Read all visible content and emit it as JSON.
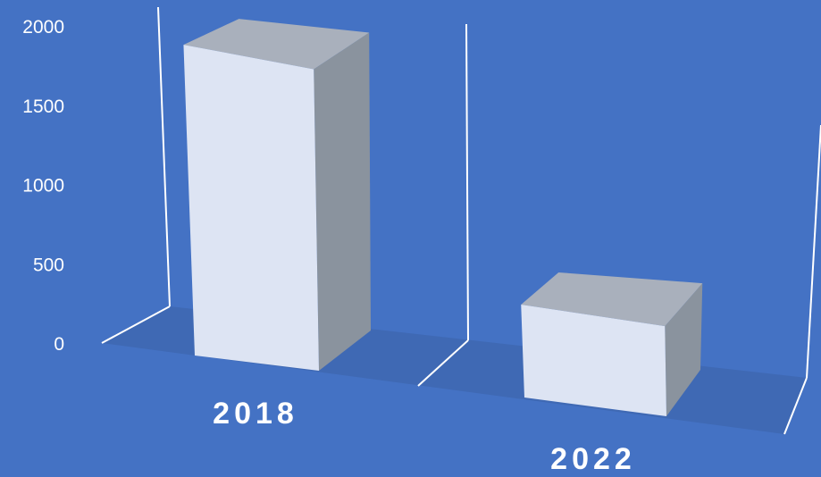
{
  "chart_data": {
    "type": "bar",
    "style": "3d-column",
    "categories": [
      "2018",
      "2022"
    ],
    "values": [
      1960,
      630
    ],
    "ylim": [
      0,
      2000
    ],
    "yticks": [
      0,
      500,
      1000,
      1500,
      2000
    ],
    "ytick_labels": [
      "0",
      "500",
      "1000",
      "1500",
      "2000"
    ],
    "title": "",
    "xlabel": "",
    "ylabel": "",
    "legend": "none",
    "grid": false,
    "colors": {
      "background": "#4472C4",
      "floor": "#3F69B4",
      "wall_lines": "#FFFFFF",
      "bar_front": "#DDE4F3",
      "bar_top": "#A9B0BC",
      "bar_side": "#8A939E",
      "text": "#FFFFFF"
    }
  }
}
